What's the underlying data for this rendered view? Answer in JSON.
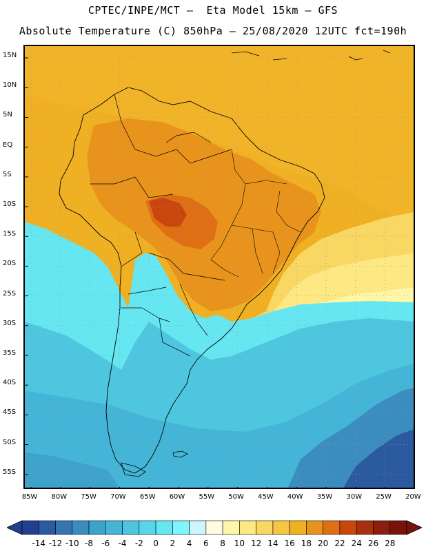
{
  "header": {
    "title_line1": "CPTEC/INPE/MCT –  Eta Model 15km – GFS",
    "title_line2": "Absolute Temperature (C) 850hPa – 25/08/2020 12UTC fct=190h"
  },
  "map": {
    "lat_ticks": [
      "15N",
      "10N",
      "5N",
      "EQ",
      "5S",
      "10S",
      "15S",
      "20S",
      "25S",
      "30S",
      "35S",
      "40S",
      "45S",
      "50S",
      "55S"
    ],
    "lon_ticks": [
      "85W",
      "80W",
      "75W",
      "70W",
      "65W",
      "60W",
      "55W",
      "50W",
      "45W",
      "40W",
      "35W",
      "30W",
      "25W",
      "20W"
    ],
    "grid": "dotted"
  },
  "colorbar": {
    "labels": [
      "-14",
      "-12",
      "-10",
      "-8",
      "-6",
      "-4",
      "-2",
      "0",
      "2",
      "4",
      "6",
      "8",
      "10",
      "12",
      "14",
      "16",
      "18",
      "20",
      "22",
      "24",
      "26",
      "28"
    ],
    "colors": [
      "#233f8f",
      "#2c5aa0",
      "#3476b1",
      "#3b8dbf",
      "#3fa2cb",
      "#44b5d6",
      "#4ec6e0",
      "#58d6e9",
      "#66e6f1",
      "#7ef6fb",
      "#cff4fb",
      "#fffbe3",
      "#fff7a6",
      "#fde884",
      "#f9d763",
      "#f5c543",
      "#efb023",
      "#e8941c",
      "#df6f14",
      "#c9470f",
      "#a7300d",
      "#8b1e0d",
      "#76140c"
    ],
    "low_arrow_color": "#233f8f",
    "high_arrow_color": "#76140c"
  }
}
